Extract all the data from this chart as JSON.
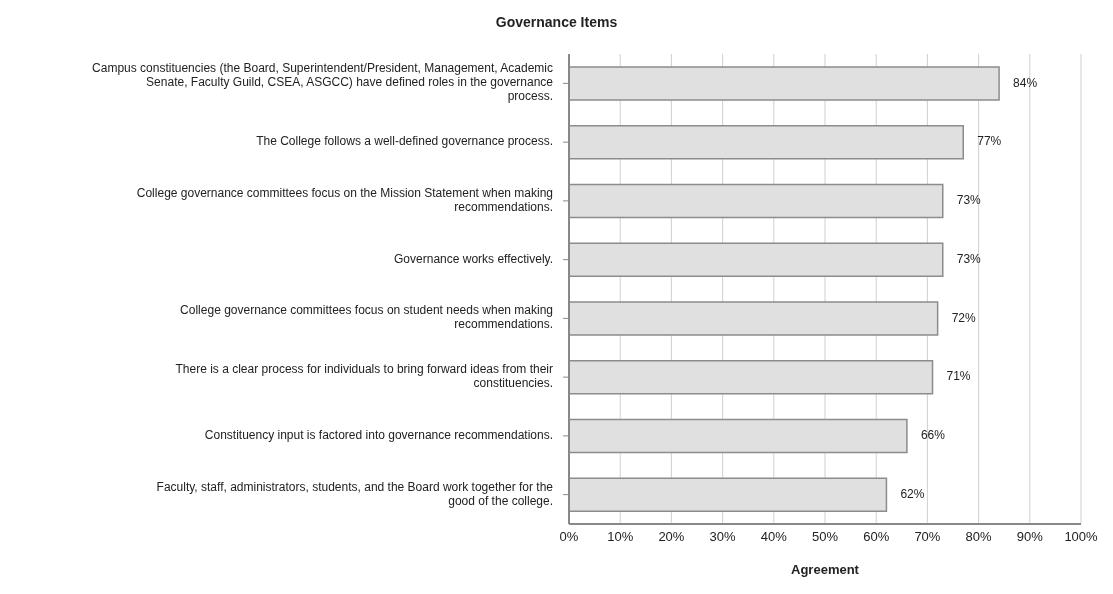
{
  "chart_data": {
    "type": "bar",
    "orientation": "horizontal",
    "title": "Governance Items",
    "xlabel": "Agreement",
    "categories": [
      "Campus constituencies (the Board, Superintendent/President, Management, Academic Senate, Faculty Guild, CSEA, ASGCC) have defined roles in the governance process.",
      "The College follows a well-defined governance process.",
      "College governance committees focus on the Mission Statement when making recommendations.",
      "Governance works effectively.",
      "College governance committees focus on student needs when making recommendations.",
      "There is a clear process for individuals to bring forward ideas from their constituencies.",
      "Constituency input is factored into governance recommendations.",
      "Faculty, staff, administrators, students, and the Board work together for the good of the college."
    ],
    "values": [
      84,
      77,
      73,
      73,
      72,
      71,
      66,
      62
    ],
    "value_labels": [
      "84%",
      "77%",
      "73%",
      "73%",
      "72%",
      "71%",
      "66%",
      "62%"
    ],
    "color": "#e0e0e0",
    "xlim": [
      0,
      100
    ],
    "xticks": [
      {
        "value": 0,
        "label": "0%"
      },
      {
        "value": 10,
        "label": "10%"
      },
      {
        "value": 20,
        "label": "20%"
      },
      {
        "value": 30,
        "label": "30%"
      },
      {
        "value": 40,
        "label": "40%"
      },
      {
        "value": 50,
        "label": "50%"
      },
      {
        "value": 60,
        "label": "60%"
      },
      {
        "value": 70,
        "label": "70%"
      },
      {
        "value": 80,
        "label": "80%"
      },
      {
        "value": 90,
        "label": "90%"
      },
      {
        "value": 100,
        "label": "100%"
      }
    ],
    "grid": "x",
    "legend": false
  }
}
